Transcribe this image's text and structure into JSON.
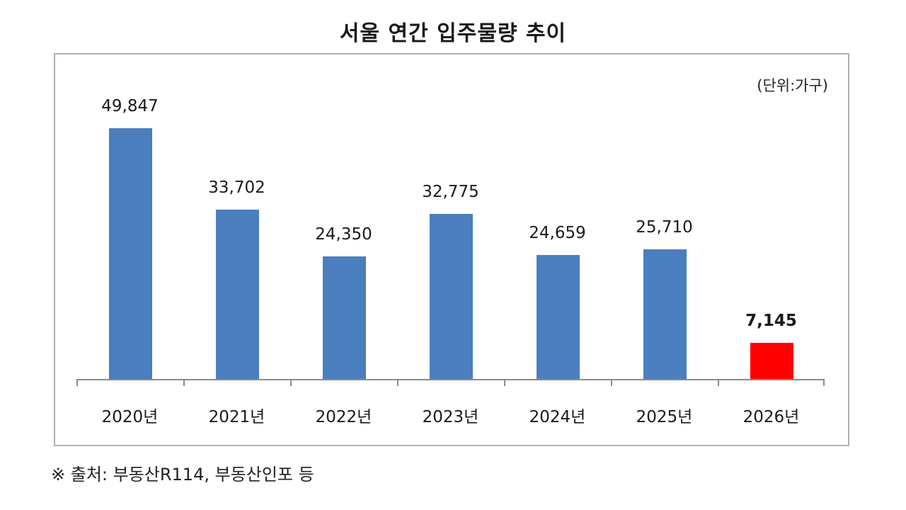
{
  "chart_data": {
    "type": "bar",
    "title": "서울 연간 입주물량 추이",
    "unit_label": "(단위:가구)",
    "xlabel": "",
    "ylabel": "",
    "categories": [
      "2020년",
      "2021년",
      "2022년",
      "2023년",
      "2024년",
      "2025년",
      "2026년"
    ],
    "values": [
      49847,
      33702,
      24350,
      32775,
      24659,
      25710,
      7145
    ],
    "value_labels": [
      "49,847",
      "33,702",
      "24,350",
      "32,775",
      "24,659",
      "25,710",
      "7,145"
    ],
    "highlight_index": 6,
    "ylim": [
      0,
      50000
    ],
    "grid": false,
    "legend": null,
    "colors": {
      "default": "#4a7ebf",
      "highlight": "#ff0000"
    }
  },
  "footer": {
    "source": "※ 출처: 부동산R114, 부동산인포 등"
  }
}
